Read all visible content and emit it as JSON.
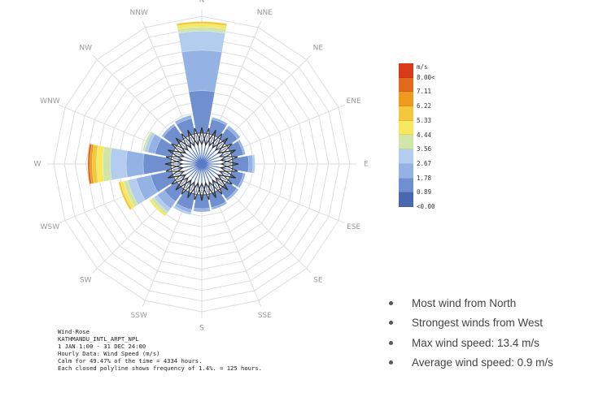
{
  "chart_data": {
    "type": "wind-rose",
    "directions": [
      "N",
      "NNE",
      "NE",
      "ENE",
      "E",
      "ESE",
      "SE",
      "SSE",
      "S",
      "SSW",
      "SW",
      "WSW",
      "W",
      "WNW",
      "NW",
      "NNW"
    ],
    "legend": {
      "unit": "m/s",
      "bins": [
        "8.00<",
        "7.11",
        "6.22",
        "5.33",
        "4.44",
        "3.56",
        "2.67",
        "1.78",
        "0.89",
        "<0.00"
      ],
      "colors": [
        "#d83a1a",
        "#e06a1c",
        "#ee9a1e",
        "#f3c83b",
        "#f7e85f",
        "#cfe6a8",
        "#b3cdef",
        "#94b3e4",
        "#6f8fcf",
        "#4a68b0"
      ]
    },
    "radial_max_hours": 1100,
    "calm_pct": 49.47,
    "wind_bars": [
      {
        "dir": "N",
        "stack": [
          [
            0.89,
            400
          ],
          [
            1.78,
            380
          ],
          [
            2.67,
            180
          ],
          [
            3.56,
            40
          ],
          [
            4.44,
            30
          ],
          [
            5.33,
            20
          ]
        ]
      },
      {
        "dir": "W",
        "stack": [
          [
            0.89,
            260
          ],
          [
            1.78,
            160
          ],
          [
            2.67,
            150
          ],
          [
            3.56,
            70
          ],
          [
            4.44,
            60
          ],
          [
            5.33,
            40
          ],
          [
            6.22,
            20
          ],
          [
            7.11,
            20
          ]
        ]
      },
      {
        "dir": "WSW",
        "stack": [
          [
            0.89,
            200
          ],
          [
            1.78,
            140
          ],
          [
            2.67,
            80
          ],
          [
            3.56,
            40
          ],
          [
            4.44,
            30
          ],
          [
            5.33,
            20
          ]
        ]
      },
      {
        "dir": "SW",
        "stack": [
          [
            0.89,
            140
          ],
          [
            1.78,
            80
          ],
          [
            2.67,
            40
          ],
          [
            3.56,
            30
          ],
          [
            4.44,
            20
          ]
        ]
      },
      {
        "dir": "WNW",
        "stack": [
          [
            0.89,
            160
          ],
          [
            1.78,
            70
          ],
          [
            2.67,
            30
          ],
          [
            3.56,
            20
          ]
        ]
      },
      {
        "dir": "SSW",
        "stack": [
          [
            0.89,
            150
          ],
          [
            1.78,
            30
          ],
          [
            2.67,
            20
          ]
        ]
      },
      {
        "dir": "NNW",
        "stack": [
          [
            0.89,
            150
          ],
          [
            1.78,
            30
          ]
        ]
      },
      {
        "dir": "NNE",
        "stack": [
          [
            0.89,
            140
          ],
          [
            1.78,
            20
          ]
        ]
      },
      {
        "dir": "NE",
        "stack": [
          [
            0.89,
            120
          ],
          [
            1.78,
            30
          ]
        ]
      },
      {
        "dir": "ENE",
        "stack": [
          [
            0.89,
            110
          ],
          [
            1.78,
            20
          ]
        ]
      },
      {
        "dir": "E",
        "stack": [
          [
            0.89,
            150
          ],
          [
            1.78,
            40
          ],
          [
            2.67,
            20
          ]
        ]
      },
      {
        "dir": "ESE",
        "stack": [
          [
            0.89,
            110
          ],
          [
            1.78,
            20
          ]
        ]
      },
      {
        "dir": "SE",
        "stack": [
          [
            0.89,
            110
          ],
          [
            1.78,
            20
          ]
        ]
      },
      {
        "dir": "SSE",
        "stack": [
          [
            0.89,
            130
          ],
          [
            1.78,
            20
          ]
        ]
      },
      {
        "dir": "S",
        "stack": [
          [
            0.89,
            130
          ],
          [
            1.78,
            30
          ]
        ]
      },
      {
        "dir": "NW",
        "stack": [
          [
            0.89,
            150
          ],
          [
            1.78,
            20
          ]
        ]
      }
    ]
  },
  "info_text": {
    "line1": "Wind-Rose",
    "line2": "KATHMANDU_INTL_ARPT_NPL",
    "line3": "1 JAN 1:00 - 31 DEC 24:00",
    "line4": "Hourly Data: Wind Speed (m/s)",
    "line5": "Calm for 49.47% of the time = 4334 hours.",
    "line6": "Each closed polyline shows frequency of 1.4%. = 125 hours."
  },
  "bullets": [
    "Most wind from North",
    "Strongest winds from West",
    "Max wind speed: 13.4 m/s",
    "Average wind speed: 0.9 m/s"
  ]
}
